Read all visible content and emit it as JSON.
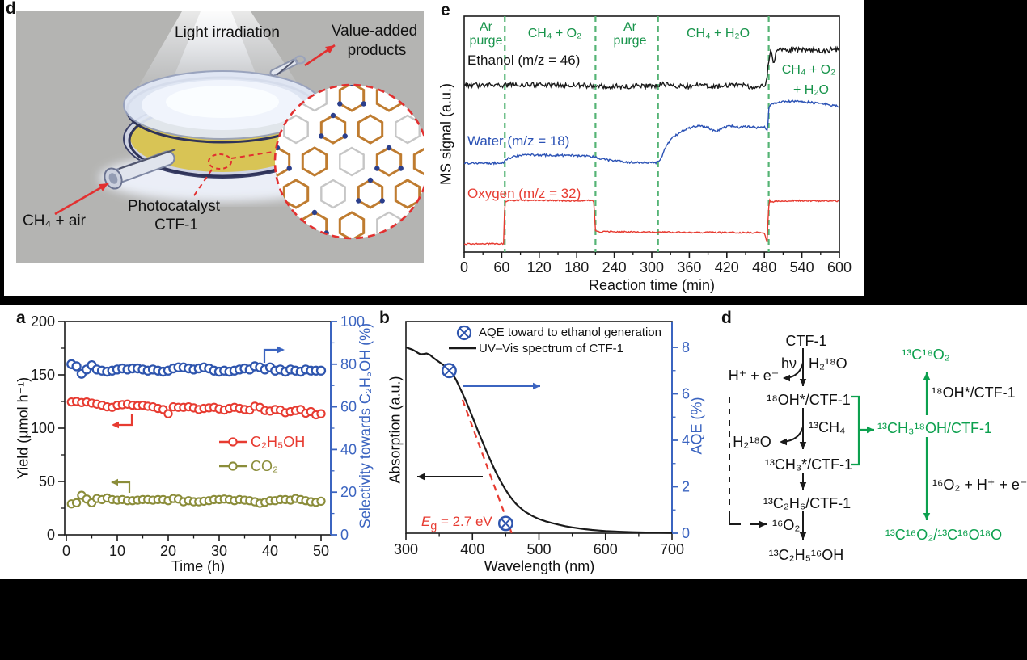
{
  "colors": {
    "black": "#1a1a1a",
    "red": "#e73b31",
    "blue_axis": "#3b64c0",
    "blue_marker": "#2e55ae",
    "water_blue": "#2b52b5",
    "olive": "#8b8d3a",
    "green_text": "#18944b",
    "green_scheme": "#0ca04e",
    "green_dash": "#55b475",
    "illus_bg": "#b4b4b2"
  },
  "top": {
    "panel_d": {
      "label": "d",
      "light_irradiation": "Light irradiation",
      "value_added_line1": "Value-added",
      "value_added_line2": "products",
      "ch4_air": "CH₄ + air",
      "photocatalyst_line1": "Photocatalyst",
      "photocatalyst_line2": "CTF-1"
    },
    "panel_e": {
      "label": "e",
      "ylabel": "MS signal (a.u.)",
      "xlabel": "Reaction time (min)",
      "regions": [
        {
          "l1": "Ar",
          "l2": "purge"
        },
        {
          "l1": "CH₄ + O₂"
        },
        {
          "l1": "Ar",
          "l2": "purge"
        },
        {
          "l1": "CH₄ + H₂O"
        },
        {
          "l1": "CH₄ + O₂",
          "l2": "+ H₂O"
        }
      ],
      "series_labels": {
        "ethanol": "Ethanol (m/z = 46)",
        "water": "Water (m/z = 18)",
        "oxygen": "Oxygen (m/z = 32)"
      }
    }
  },
  "bottom": {
    "panel_a": {
      "label": "a",
      "ylabel_left": "Yield (μmol h⁻¹)",
      "ylabel_right": "Selectivity towards C₂H₅OH (%)",
      "xlabel": "Time (h)",
      "legend": [
        {
          "label": "C₂H₅OH"
        },
        {
          "label": "CO₂"
        }
      ]
    },
    "panel_b": {
      "label": "b",
      "ylabel_left": "Absorption (a.u.)",
      "ylabel_right": "AQE (%)",
      "xlabel": "Wavelength (nm)",
      "legend_marker": "AQE toward to ethanol generation",
      "legend_line": "UV–Vis spectrum of CTF-1",
      "eg": {
        "e": "E",
        "sub": "g",
        "rest": " = 2.7 eV"
      }
    },
    "panel_d2": {
      "label": "d",
      "nodes": {
        "ctf1": "CTF-1",
        "hv": "hν",
        "h2o18": "H₂¹⁸O",
        "h_e": "H⁺ + e⁻",
        "oh18": "¹⁸OH*/CTF-1",
        "ch4_13": "¹³CH₄",
        "h2o18b": "H₂¹⁸O",
        "ch3_13": "¹³CH₃*/CTF-1",
        "c2h6_13": "¹³C₂H₆/CTF-1",
        "o16": "¹⁶O₂",
        "ethanol_13": "¹³C₂H₅¹⁶OH",
        "ch3oh_green": "¹³CH₃¹⁸OH/CTF-1",
        "co2_18_green": "¹³C¹⁸O₂",
        "oh18_label": "¹⁸OH*/CTF-1",
        "o2_h_e": "¹⁶O₂ + H⁺ + e⁻",
        "co2_mix_green": "¹³C¹⁶O₂/¹³C¹⁶O¹⁸O"
      }
    }
  },
  "chart_data": [
    {
      "id": "a",
      "type": "scatter",
      "xlabel": "Time (h)",
      "ylabel_left": "Yield (μmol h⁻¹)",
      "ylabel_right": "Selectivity towards C₂H₅OH (%)",
      "xlim": [
        0,
        52
      ],
      "xticks": [
        0,
        10,
        20,
        30,
        40,
        50
      ],
      "ylim_left": [
        0,
        200
      ],
      "yticks_left": [
        0,
        50,
        100,
        150,
        200
      ],
      "ylim_right": [
        0,
        100
      ],
      "yticks_right": [
        0,
        20,
        40,
        60,
        80,
        100
      ],
      "x": [
        1,
        2,
        3,
        4,
        5,
        6,
        7,
        8,
        9,
        10,
        11,
        12,
        13,
        14,
        15,
        16,
        17,
        18,
        19,
        20,
        21,
        22,
        23,
        24,
        25,
        26,
        27,
        28,
        29,
        30,
        31,
        32,
        33,
        34,
        35,
        36,
        37,
        38,
        39,
        40,
        41,
        42,
        43,
        44,
        45,
        46,
        47,
        48,
        49,
        50
      ],
      "series": [
        {
          "name": "C₂H₅OH",
          "axis": "left",
          "color": "#e73b31",
          "values": [
            124.5,
            125,
            124,
            124.5,
            123.5,
            122.5,
            121.5,
            120,
            119.5,
            121.5,
            122,
            122.5,
            121.5,
            121,
            121.5,
            120.5,
            120,
            118.5,
            117.5,
            113.5,
            120,
            119.5,
            119.5,
            120,
            119,
            117.5,
            118.5,
            119,
            119.5,
            118,
            117,
            118.5,
            119.5,
            118.5,
            117.5,
            117,
            120.5,
            119.5,
            116.5,
            116,
            117.5,
            117,
            114.5,
            115.5,
            116.5,
            117.5,
            114,
            115.5,
            112.5,
            113.5
          ]
        },
        {
          "name": "CO₂",
          "axis": "left",
          "color": "#8b8d3a",
          "values": [
            29,
            30,
            37,
            33.5,
            30,
            34,
            33,
            34.5,
            33,
            32.5,
            33,
            32,
            32,
            32.5,
            33,
            33,
            32.5,
            33,
            33,
            32,
            34,
            33.5,
            31,
            32,
            31,
            31,
            31.5,
            32,
            33,
            33,
            33.5,
            33,
            32,
            33,
            32.5,
            32,
            31,
            29.5,
            30.5,
            32,
            32,
            33,
            33,
            32.5,
            34,
            33,
            32,
            31,
            30.5,
            31.5
          ]
        },
        {
          "name": "Selectivity towards C₂H₅OH",
          "axis": "right",
          "color": "#2e55ae",
          "values": [
            80,
            79,
            75.5,
            77.5,
            79.5,
            77.5,
            77,
            76.5,
            77,
            77.5,
            78,
            77.5,
            78,
            78,
            77.5,
            77,
            77.5,
            77,
            76.5,
            77,
            78,
            78.5,
            78.5,
            78,
            77.5,
            78,
            78.5,
            78,
            77,
            76.5,
            77,
            76.5,
            77,
            77.5,
            78,
            77.5,
            79,
            78.5,
            77.5,
            78.5,
            77,
            77.5,
            76.5,
            77.5,
            77,
            76.5,
            77.5,
            77,
            77,
            77
          ]
        }
      ]
    },
    {
      "id": "b",
      "type": "line",
      "xlabel": "Wavelength (nm)",
      "ylabel_left": "Absorption (a.u.)",
      "ylabel_right": "AQE (%)",
      "xlim": [
        300,
        700
      ],
      "xticks": [
        300,
        400,
        500,
        600,
        700
      ],
      "ylim_right": [
        0,
        8.8
      ],
      "yticks_right": [
        0,
        2,
        4,
        6,
        8
      ],
      "band_gap_eV": 2.7,
      "uvvis": [
        [
          300,
          8.0
        ],
        [
          305,
          7.95
        ],
        [
          310,
          7.9
        ],
        [
          315,
          7.82
        ],
        [
          318,
          7.76
        ],
        [
          322,
          7.7
        ],
        [
          327,
          7.72
        ],
        [
          331,
          7.74
        ],
        [
          336,
          7.68
        ],
        [
          340,
          7.58
        ],
        [
          345,
          7.47
        ],
        [
          350,
          7.37
        ],
        [
          355,
          7.27
        ],
        [
          360,
          7.15
        ],
        [
          365,
          7.02
        ],
        [
          370,
          6.85
        ],
        [
          375,
          6.62
        ],
        [
          380,
          6.32
        ],
        [
          385,
          6.02
        ],
        [
          390,
          5.7
        ],
        [
          395,
          5.36
        ],
        [
          400,
          5.0
        ],
        [
          405,
          4.64
        ],
        [
          410,
          4.28
        ],
        [
          415,
          3.94
        ],
        [
          420,
          3.6
        ],
        [
          425,
          3.27
        ],
        [
          430,
          2.95
        ],
        [
          435,
          2.64
        ],
        [
          440,
          2.36
        ],
        [
          445,
          2.1
        ],
        [
          450,
          1.86
        ],
        [
          455,
          1.64
        ],
        [
          460,
          1.45
        ],
        [
          465,
          1.28
        ],
        [
          470,
          1.14
        ],
        [
          475,
          1.02
        ],
        [
          480,
          0.91
        ],
        [
          490,
          0.74
        ],
        [
          500,
          0.61
        ],
        [
          510,
          0.51
        ],
        [
          520,
          0.43
        ],
        [
          530,
          0.36
        ],
        [
          540,
          0.3
        ],
        [
          550,
          0.25
        ],
        [
          560,
          0.21
        ],
        [
          570,
          0.17
        ],
        [
          580,
          0.14
        ],
        [
          590,
          0.115
        ],
        [
          600,
          0.095
        ],
        [
          620,
          0.065
        ],
        [
          640,
          0.045
        ],
        [
          660,
          0.03
        ],
        [
          680,
          0.02
        ],
        [
          700,
          0.012
        ]
      ],
      "tangent": [
        [
          385,
          5.75
        ],
        [
          459,
          0
        ]
      ],
      "aqe_points": [
        [
          365,
          7.0
        ],
        [
          450,
          0.42
        ]
      ]
    },
    {
      "id": "e",
      "type": "line",
      "xlabel": "Reaction time (min)",
      "ylabel": "MS signal (a.u.)",
      "xlim": [
        0,
        600
      ],
      "xticks": [
        0,
        60,
        120,
        180,
        240,
        300,
        360,
        420,
        480,
        540,
        600
      ],
      "y_units": "a.u. (normalized 0-1 of plot height)",
      "region_boundaries": [
        65,
        210,
        310,
        487
      ],
      "region_labels": [
        "Ar purge",
        "CH₄ + O₂",
        "Ar purge",
        "CH₄ + H₂O",
        "CH₄ + O₂ + H₂O"
      ],
      "series": [
        {
          "name": "Ethanol (m/z = 46)",
          "color": "#1a1a1a",
          "noise": 0.011,
          "points": [
            [
              0,
              0.709
            ],
            [
              60,
              0.707
            ],
            [
              90,
              0.712
            ],
            [
              120,
              0.707
            ],
            [
              160,
              0.71
            ],
            [
              200,
              0.705
            ],
            [
              240,
              0.702
            ],
            [
              280,
              0.703
            ],
            [
              310,
              0.705
            ],
            [
              318,
              0.72
            ],
            [
              321,
              0.7
            ],
            [
              324,
              0.728
            ],
            [
              327,
              0.703
            ],
            [
              331,
              0.718
            ],
            [
              335,
              0.704
            ],
            [
              360,
              0.703
            ],
            [
              385,
              0.715
            ],
            [
              390,
              0.702
            ],
            [
              420,
              0.705
            ],
            [
              440,
              0.708
            ],
            [
              460,
              0.701
            ],
            [
              475,
              0.703
            ],
            [
              481,
              0.707
            ],
            [
              484,
              0.73
            ],
            [
              486,
              0.795
            ],
            [
              489,
              0.845
            ],
            [
              491,
              0.865
            ],
            [
              493,
              0.82
            ],
            [
              496,
              0.8
            ],
            [
              499,
              0.85
            ],
            [
              503,
              0.868
            ],
            [
              515,
              0.858
            ],
            [
              540,
              0.862
            ],
            [
              570,
              0.855
            ],
            [
              600,
              0.858
            ]
          ]
        },
        {
          "name": "Water (m/z = 18)",
          "color": "#2b52b5",
          "noise": 0.0045,
          "points": [
            [
              0,
              0.377
            ],
            [
              62,
              0.377
            ],
            [
              68,
              0.395
            ],
            [
              85,
              0.408
            ],
            [
              110,
              0.412
            ],
            [
              150,
              0.41
            ],
            [
              190,
              0.408
            ],
            [
              205,
              0.405
            ],
            [
              215,
              0.398
            ],
            [
              235,
              0.388
            ],
            [
              265,
              0.38
            ],
            [
              305,
              0.377
            ],
            [
              313,
              0.388
            ],
            [
              323,
              0.45
            ],
            [
              335,
              0.49
            ],
            [
              350,
              0.515
            ],
            [
              365,
              0.53
            ],
            [
              380,
              0.535
            ],
            [
              392,
              0.525
            ],
            [
              402,
              0.51
            ],
            [
              412,
              0.525
            ],
            [
              425,
              0.535
            ],
            [
              440,
              0.528
            ],
            [
              455,
              0.532
            ],
            [
              468,
              0.527
            ],
            [
              480,
              0.53
            ],
            [
              484,
              0.52
            ],
            [
              485,
              0.5
            ],
            [
              487,
              0.61
            ],
            [
              490,
              0.625
            ],
            [
              505,
              0.635
            ],
            [
              525,
              0.64
            ],
            [
              550,
              0.635
            ],
            [
              575,
              0.628
            ],
            [
              600,
              0.618
            ]
          ]
        },
        {
          "name": "Oxygen (m/z = 32)",
          "color": "#e73b31",
          "noise": 0.003,
          "points": [
            [
              0,
              0.035
            ],
            [
              63,
              0.035
            ],
            [
              65,
              0.21
            ],
            [
              68,
              0.218
            ],
            [
              120,
              0.22
            ],
            [
              170,
              0.217
            ],
            [
              207,
              0.219
            ],
            [
              210,
              0.09
            ],
            [
              214,
              0.086
            ],
            [
              280,
              0.085
            ],
            [
              360,
              0.083
            ],
            [
              440,
              0.082
            ],
            [
              480,
              0.082
            ],
            [
              483,
              0.055
            ],
            [
              485,
              0.04
            ],
            [
              486,
              0.16
            ],
            [
              488,
              0.22
            ],
            [
              492,
              0.21
            ],
            [
              496,
              0.215
            ],
            [
              530,
              0.218
            ],
            [
              600,
              0.216
            ]
          ]
        }
      ]
    }
  ]
}
